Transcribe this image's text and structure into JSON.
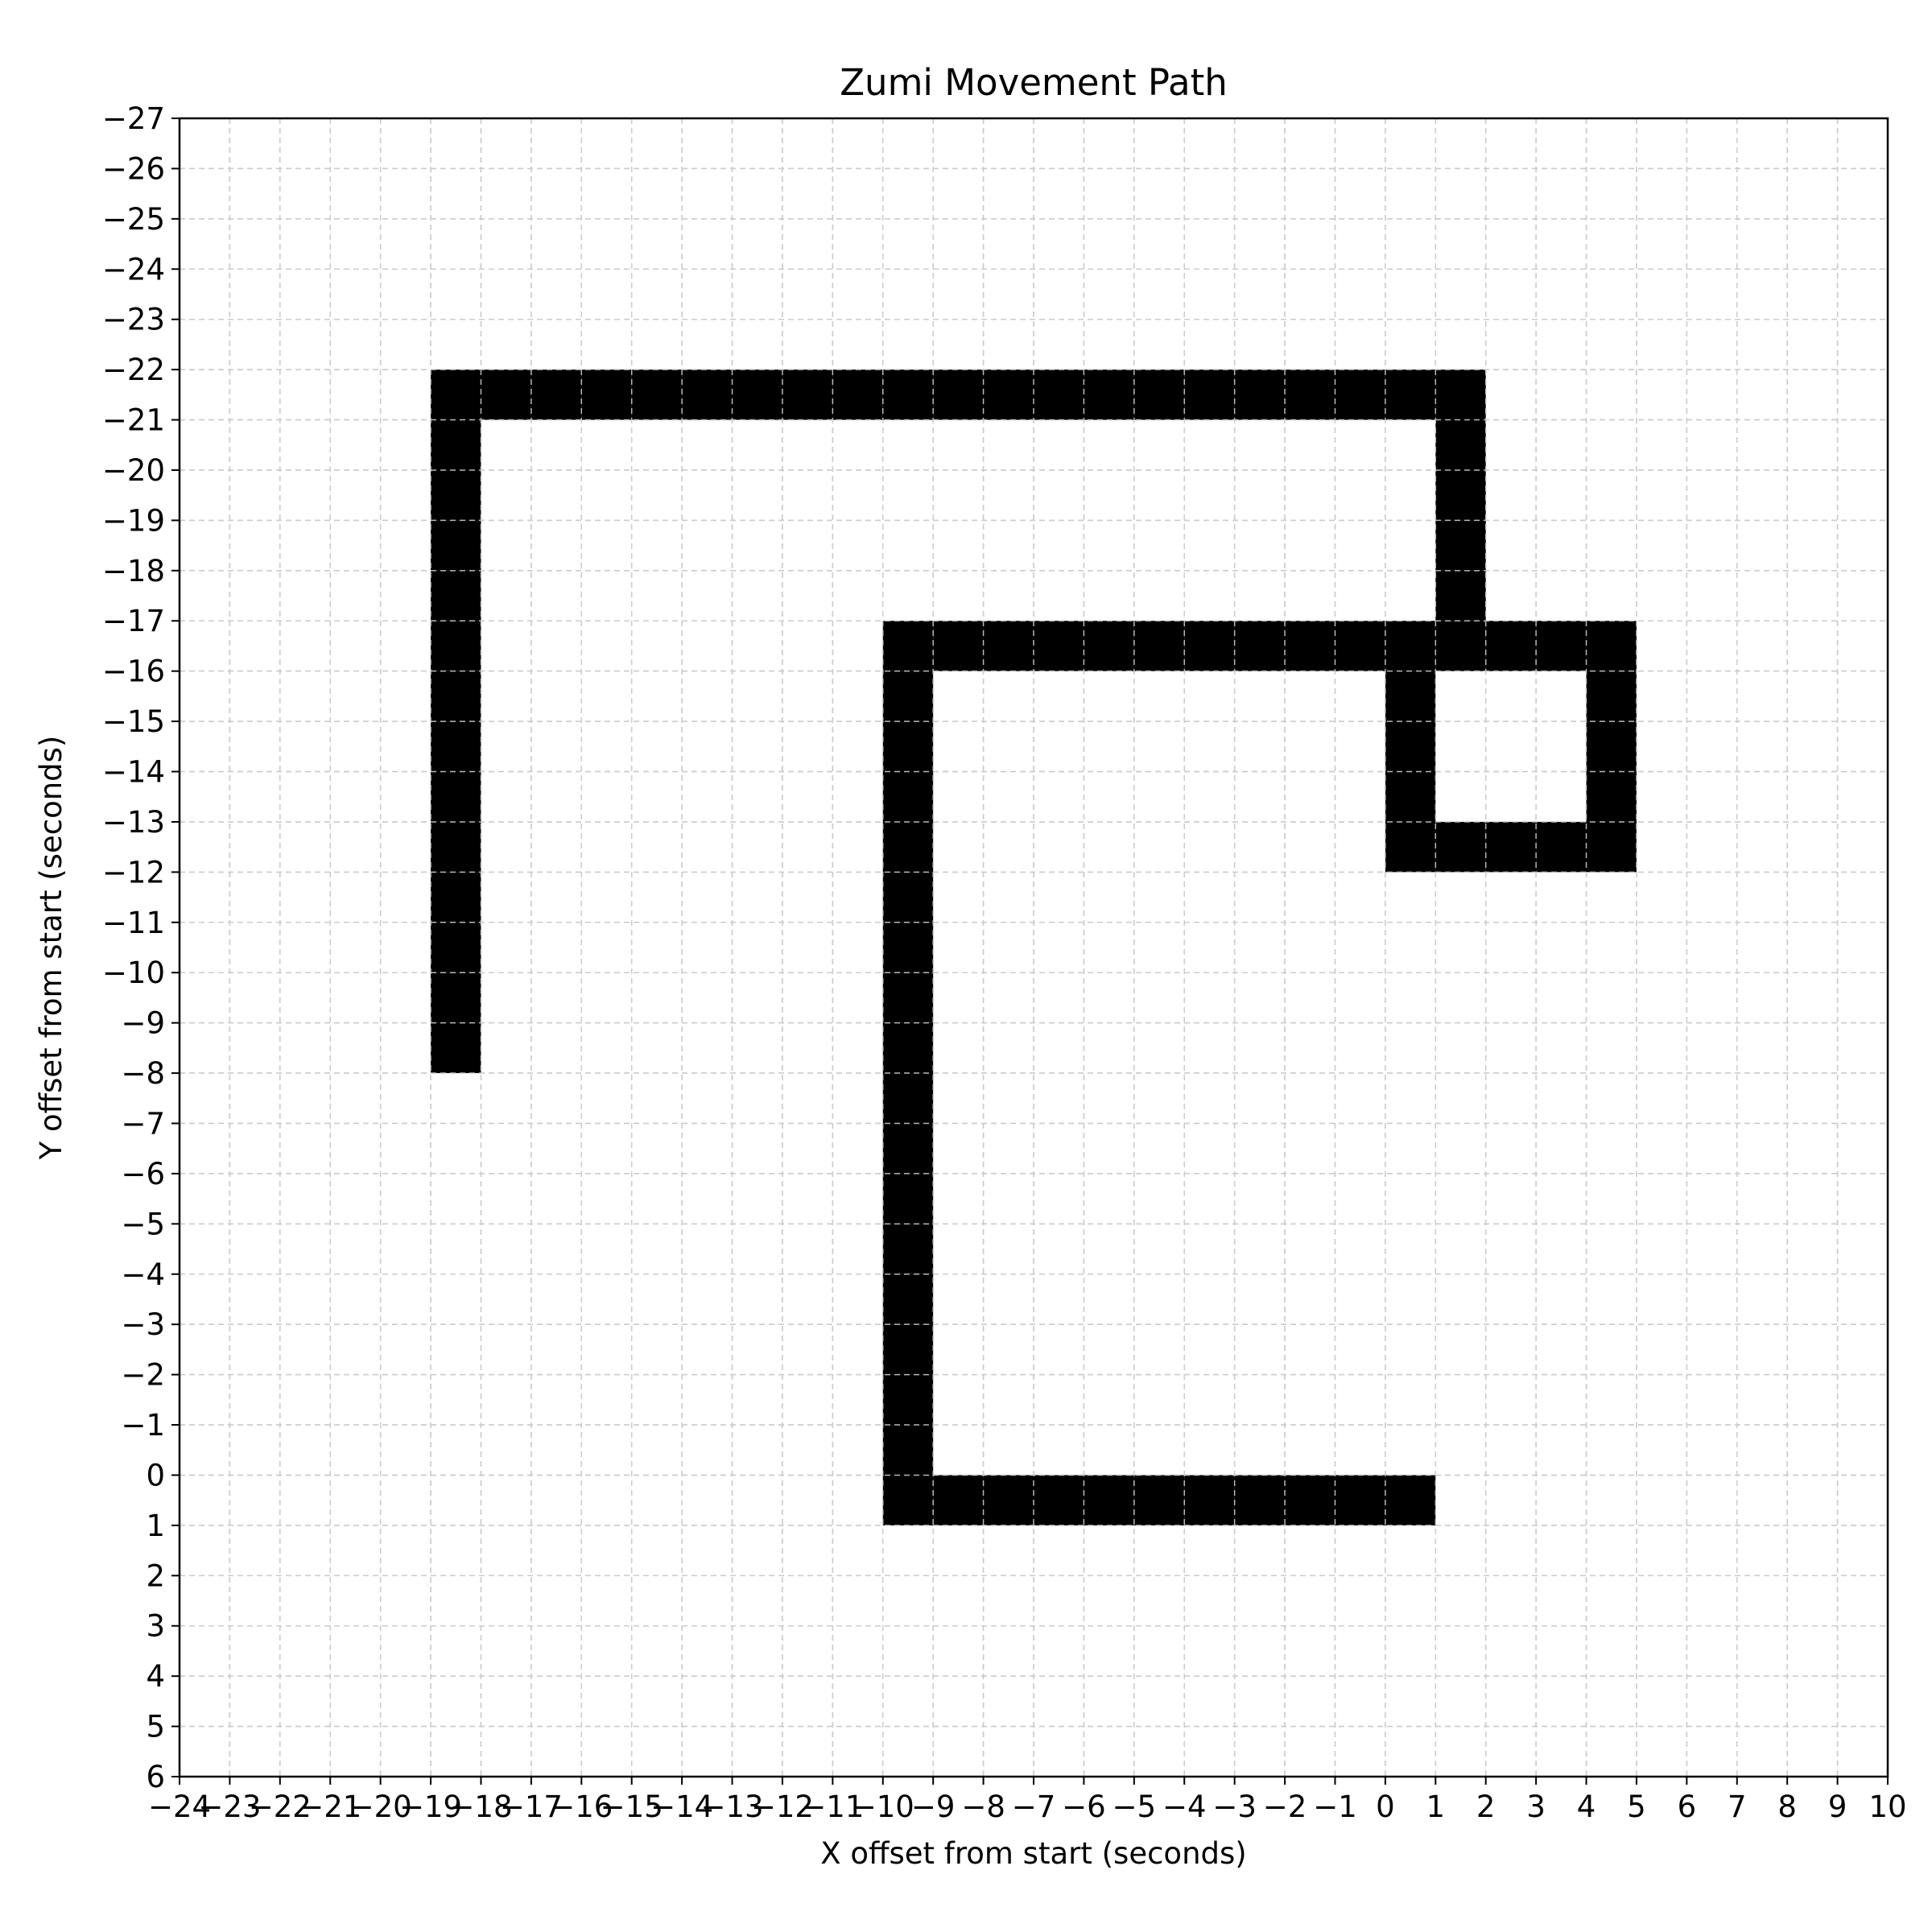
{
  "chart_data": {
    "type": "heatmap",
    "title": "Zumi Movement Path",
    "xlabel": "X offset from start (seconds)",
    "ylabel": "Y offset from start (seconds)",
    "xlim": [
      -24,
      10
    ],
    "ylim": [
      -27,
      6
    ],
    "y_axis_inverted": true,
    "x_ticks": [
      -24,
      -23,
      -22,
      -21,
      -20,
      -19,
      -18,
      -17,
      -16,
      -15,
      -14,
      -13,
      -12,
      -11,
      -10,
      -9,
      -8,
      -7,
      -6,
      -5,
      -4,
      -3,
      -2,
      -1,
      0,
      1,
      2,
      3,
      4,
      5,
      6,
      7,
      8,
      9,
      10
    ],
    "y_ticks": [
      -27,
      -26,
      -25,
      -24,
      -23,
      -22,
      -21,
      -20,
      -19,
      -18,
      -17,
      -16,
      -15,
      -14,
      -13,
      -12,
      -11,
      -10,
      -9,
      -8,
      -7,
      -6,
      -5,
      -4,
      -3,
      -2,
      -1,
      0,
      1,
      2,
      3,
      4,
      5,
      6
    ],
    "grid": true,
    "cell_color": "#000000",
    "grid_color": "#cccccc",
    "filled_cells": [
      [
        0,
        0
      ],
      [
        -1,
        0
      ],
      [
        -2,
        0
      ],
      [
        -3,
        0
      ],
      [
        -4,
        0
      ],
      [
        -5,
        0
      ],
      [
        -6,
        0
      ],
      [
        -7,
        0
      ],
      [
        -8,
        0
      ],
      [
        -9,
        0
      ],
      [
        -10,
        0
      ],
      [
        -10,
        -1
      ],
      [
        -10,
        -2
      ],
      [
        -10,
        -3
      ],
      [
        -10,
        -4
      ],
      [
        -10,
        -5
      ],
      [
        -10,
        -6
      ],
      [
        -10,
        -7
      ],
      [
        -10,
        -8
      ],
      [
        -10,
        -9
      ],
      [
        -10,
        -10
      ],
      [
        -10,
        -11
      ],
      [
        -10,
        -12
      ],
      [
        -10,
        -13
      ],
      [
        -10,
        -14
      ],
      [
        -10,
        -15
      ],
      [
        -10,
        -16
      ],
      [
        -10,
        -17
      ],
      [
        -9,
        -17
      ],
      [
        -8,
        -17
      ],
      [
        -7,
        -17
      ],
      [
        -6,
        -17
      ],
      [
        -5,
        -17
      ],
      [
        -4,
        -17
      ],
      [
        -3,
        -17
      ],
      [
        -2,
        -17
      ],
      [
        -1,
        -17
      ],
      [
        0,
        -17
      ],
      [
        1,
        -17
      ],
      [
        2,
        -17
      ],
      [
        3,
        -17
      ],
      [
        4,
        -17
      ],
      [
        4,
        -16
      ],
      [
        4,
        -15
      ],
      [
        4,
        -14
      ],
      [
        4,
        -13
      ],
      [
        3,
        -13
      ],
      [
        2,
        -13
      ],
      [
        1,
        -13
      ],
      [
        0,
        -13
      ],
      [
        0,
        -14
      ],
      [
        0,
        -15
      ],
      [
        0,
        -16
      ],
      [
        1,
        -18
      ],
      [
        1,
        -19
      ],
      [
        1,
        -20
      ],
      [
        1,
        -21
      ],
      [
        1,
        -22
      ],
      [
        0,
        -22
      ],
      [
        -1,
        -22
      ],
      [
        -2,
        -22
      ],
      [
        -3,
        -22
      ],
      [
        -4,
        -22
      ],
      [
        -5,
        -22
      ],
      [
        -6,
        -22
      ],
      [
        -7,
        -22
      ],
      [
        -8,
        -22
      ],
      [
        -9,
        -22
      ],
      [
        -10,
        -22
      ],
      [
        -11,
        -22
      ],
      [
        -12,
        -22
      ],
      [
        -13,
        -22
      ],
      [
        -14,
        -22
      ],
      [
        -15,
        -22
      ],
      [
        -16,
        -22
      ],
      [
        -17,
        -22
      ],
      [
        -18,
        -22
      ],
      [
        -19,
        -22
      ],
      [
        -19,
        -21
      ],
      [
        -19,
        -20
      ],
      [
        -19,
        -19
      ],
      [
        -19,
        -18
      ],
      [
        -19,
        -17
      ],
      [
        -19,
        -16
      ],
      [
        -19,
        -15
      ],
      [
        -19,
        -14
      ],
      [
        -19,
        -13
      ],
      [
        -19,
        -12
      ],
      [
        -19,
        -11
      ],
      [
        -19,
        -10
      ],
      [
        -19,
        -9
      ]
    ]
  }
}
